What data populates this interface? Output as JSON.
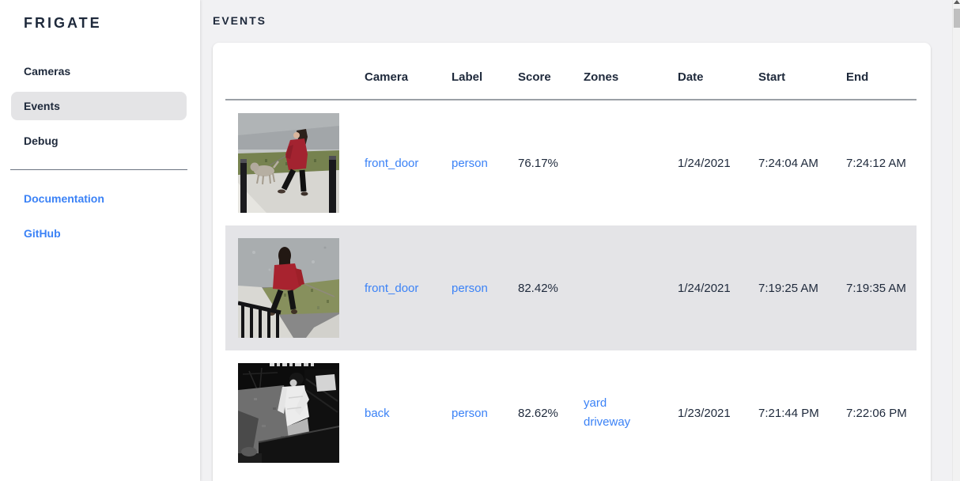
{
  "app": {
    "title": "FRIGATE"
  },
  "sidebar": {
    "items": [
      {
        "label": "Cameras",
        "selected": false
      },
      {
        "label": "Events",
        "selected": true
      },
      {
        "label": "Debug",
        "selected": false
      }
    ],
    "links": [
      {
        "label": "Documentation"
      },
      {
        "label": "GitHub"
      }
    ]
  },
  "page": {
    "title": "EVENTS"
  },
  "table": {
    "columns": [
      "",
      "Camera",
      "Label",
      "Score",
      "Zones",
      "Date",
      "Start",
      "End"
    ],
    "rows": [
      {
        "camera": "front_door",
        "label": "person",
        "score": "76.17%",
        "zones": [],
        "date": "1/24/2021",
        "start": "7:24:04 AM",
        "end": "7:24:12 AM",
        "highlighted": false,
        "thumb": "thumb-day-dog",
        "thumb_alt": "Daytime snapshot: person in red coat walking a small dog on a sidewalk between posts"
      },
      {
        "camera": "front_door",
        "label": "person",
        "score": "82.42%",
        "zones": [],
        "date": "1/24/2021",
        "start": "7:19:25 AM",
        "end": "7:19:35 AM",
        "highlighted": true,
        "thumb": "thumb-day-back",
        "thumb_alt": "Daytime snapshot: person in red hooded jacket seen from behind walking a dog past a dark railing"
      },
      {
        "camera": "back",
        "label": "person",
        "score": "82.62%",
        "zones": [
          "yard",
          "driveway"
        ],
        "date": "1/23/2021",
        "start": "7:21:44 PM",
        "end": "7:22:06 PM",
        "highlighted": false,
        "thumb": "thumb-night",
        "thumb_alt": "Night infrared snapshot: person in light long-sleeved shirt beside a dark truck bed"
      }
    ]
  },
  "colors": {
    "accent_link": "#3b82f6",
    "text_dark": "#1e293b",
    "row_highlight": "#e4e4e7",
    "selected_nav_bg": "#e4e4e6"
  },
  "icons": [
    "scroll-up-icon"
  ]
}
